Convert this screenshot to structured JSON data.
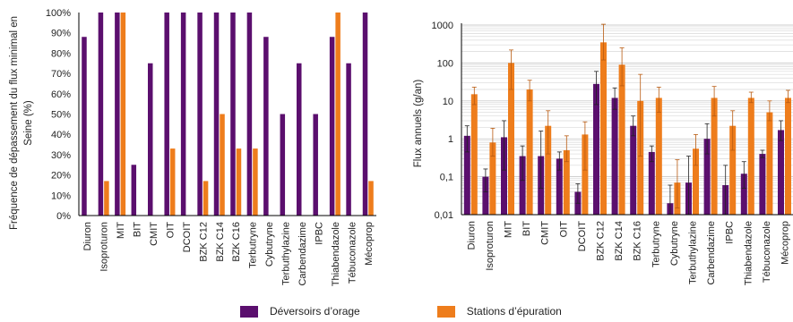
{
  "colors": {
    "purple": "#5B0F6E",
    "orange": "#EE7D1C",
    "grid": "#d9d9d9",
    "axis": "#000000",
    "error": "#000000"
  },
  "legend": {
    "series_a": "Déversoirs d’orage",
    "series_b": "Stations d’épuration",
    "position": "bottom-center"
  },
  "chart_data": [
    {
      "type": "bar",
      "ylabel_lines": [
        "Fréquence de dépassement du flux minimal en",
        "Seine (%)"
      ],
      "ylim": [
        0,
        100
      ],
      "yticks": [
        "0%",
        "10%",
        "20%",
        "30%",
        "40%",
        "50%",
        "60%",
        "70%",
        "80%",
        "90%",
        "100%"
      ],
      "grid": false,
      "categories": [
        "Diuron",
        "Isoproturon",
        "MIT",
        "BIT",
        "CMIT",
        "OIT",
        "DCOIT",
        "BZK C12",
        "BZK C14",
        "BZK C16",
        "Terbutryne",
        "Cybutryne",
        "Terbuthylazine",
        "Carbendazime",
        "IPBC",
        "Thiabendazole",
        "Tébuconazole",
        "Mécoprop"
      ],
      "series": [
        {
          "name": "Déversoirs d’orage",
          "color": "#5B0F6E",
          "values": [
            88,
            100,
            100,
            25,
            75,
            100,
            100,
            100,
            100,
            100,
            100,
            88,
            50,
            75,
            50,
            88,
            75,
            100
          ]
        },
        {
          "name": "Stations d’épuration",
          "color": "#EE7D1C",
          "values": [
            0,
            17,
            100,
            0,
            0,
            33,
            0,
            17,
            50,
            33,
            33,
            0,
            0,
            0,
            0,
            100,
            0,
            17
          ]
        }
      ]
    },
    {
      "type": "bar",
      "yscale": "log",
      "ylabel": "Flux annuels (g/an)",
      "ylim": [
        0.01,
        1000
      ],
      "yticks": [
        "0,01",
        "0,1",
        "1",
        "10",
        "100",
        "1000"
      ],
      "grid": true,
      "categories": [
        "Diuron",
        "Isoproturon",
        "MIT",
        "BIT",
        "CMIT",
        "OIT",
        "DCOIT",
        "BZK C12",
        "BZK C14",
        "BZK C16",
        "Terbutryne",
        "Cybutryne",
        "Terbuthylazine",
        "Carbendazime",
        "IPBC",
        "Thiabendazole",
        "Tébuconazole",
        "Mécoprop"
      ],
      "series": [
        {
          "name": "Déversoirs d’orage",
          "color": "#5B0F6E",
          "values": [
            1.2,
            0.1,
            1.1,
            0.35,
            0.35,
            0.3,
            0.04,
            28,
            12,
            2.2,
            0.45,
            0.02,
            0.07,
            1.0,
            0.06,
            0.12,
            0.4,
            1.7
          ],
          "err_low": [
            0.45,
            0.04,
            0.15,
            0.08,
            0.05,
            0.15,
            0.02,
            8,
            6,
            1.2,
            0.25,
            0.01,
            0.01,
            0.4,
            0.01,
            0.05,
            0.32,
            0.9
          ],
          "err_high": [
            2.2,
            0.16,
            3.0,
            0.65,
            1.6,
            0.45,
            0.065,
            60,
            22,
            4.0,
            0.65,
            0.06,
            0.35,
            2.5,
            0.2,
            0.25,
            0.5,
            3.0
          ]
        },
        {
          "name": "Stations d’épuration",
          "color": "#EE7D1C",
          "values": [
            15,
            0.8,
            100,
            20,
            2.2,
            0.5,
            1.3,
            350,
            90,
            10,
            12,
            0.07,
            0.55,
            12,
            2.2,
            12,
            5,
            12
          ],
          "err_low": [
            8,
            0.35,
            20,
            10,
            0.4,
            0.25,
            0.15,
            120,
            25,
            0.35,
            5,
            0.015,
            0.2,
            4,
            0.5,
            9,
            3,
            9
          ],
          "err_high": [
            23,
            1.9,
            220,
            35,
            5.5,
            1.2,
            2.8,
            1050,
            250,
            50,
            23,
            0.28,
            1.3,
            24,
            5.5,
            17,
            10,
            19
          ]
        }
      ]
    }
  ]
}
